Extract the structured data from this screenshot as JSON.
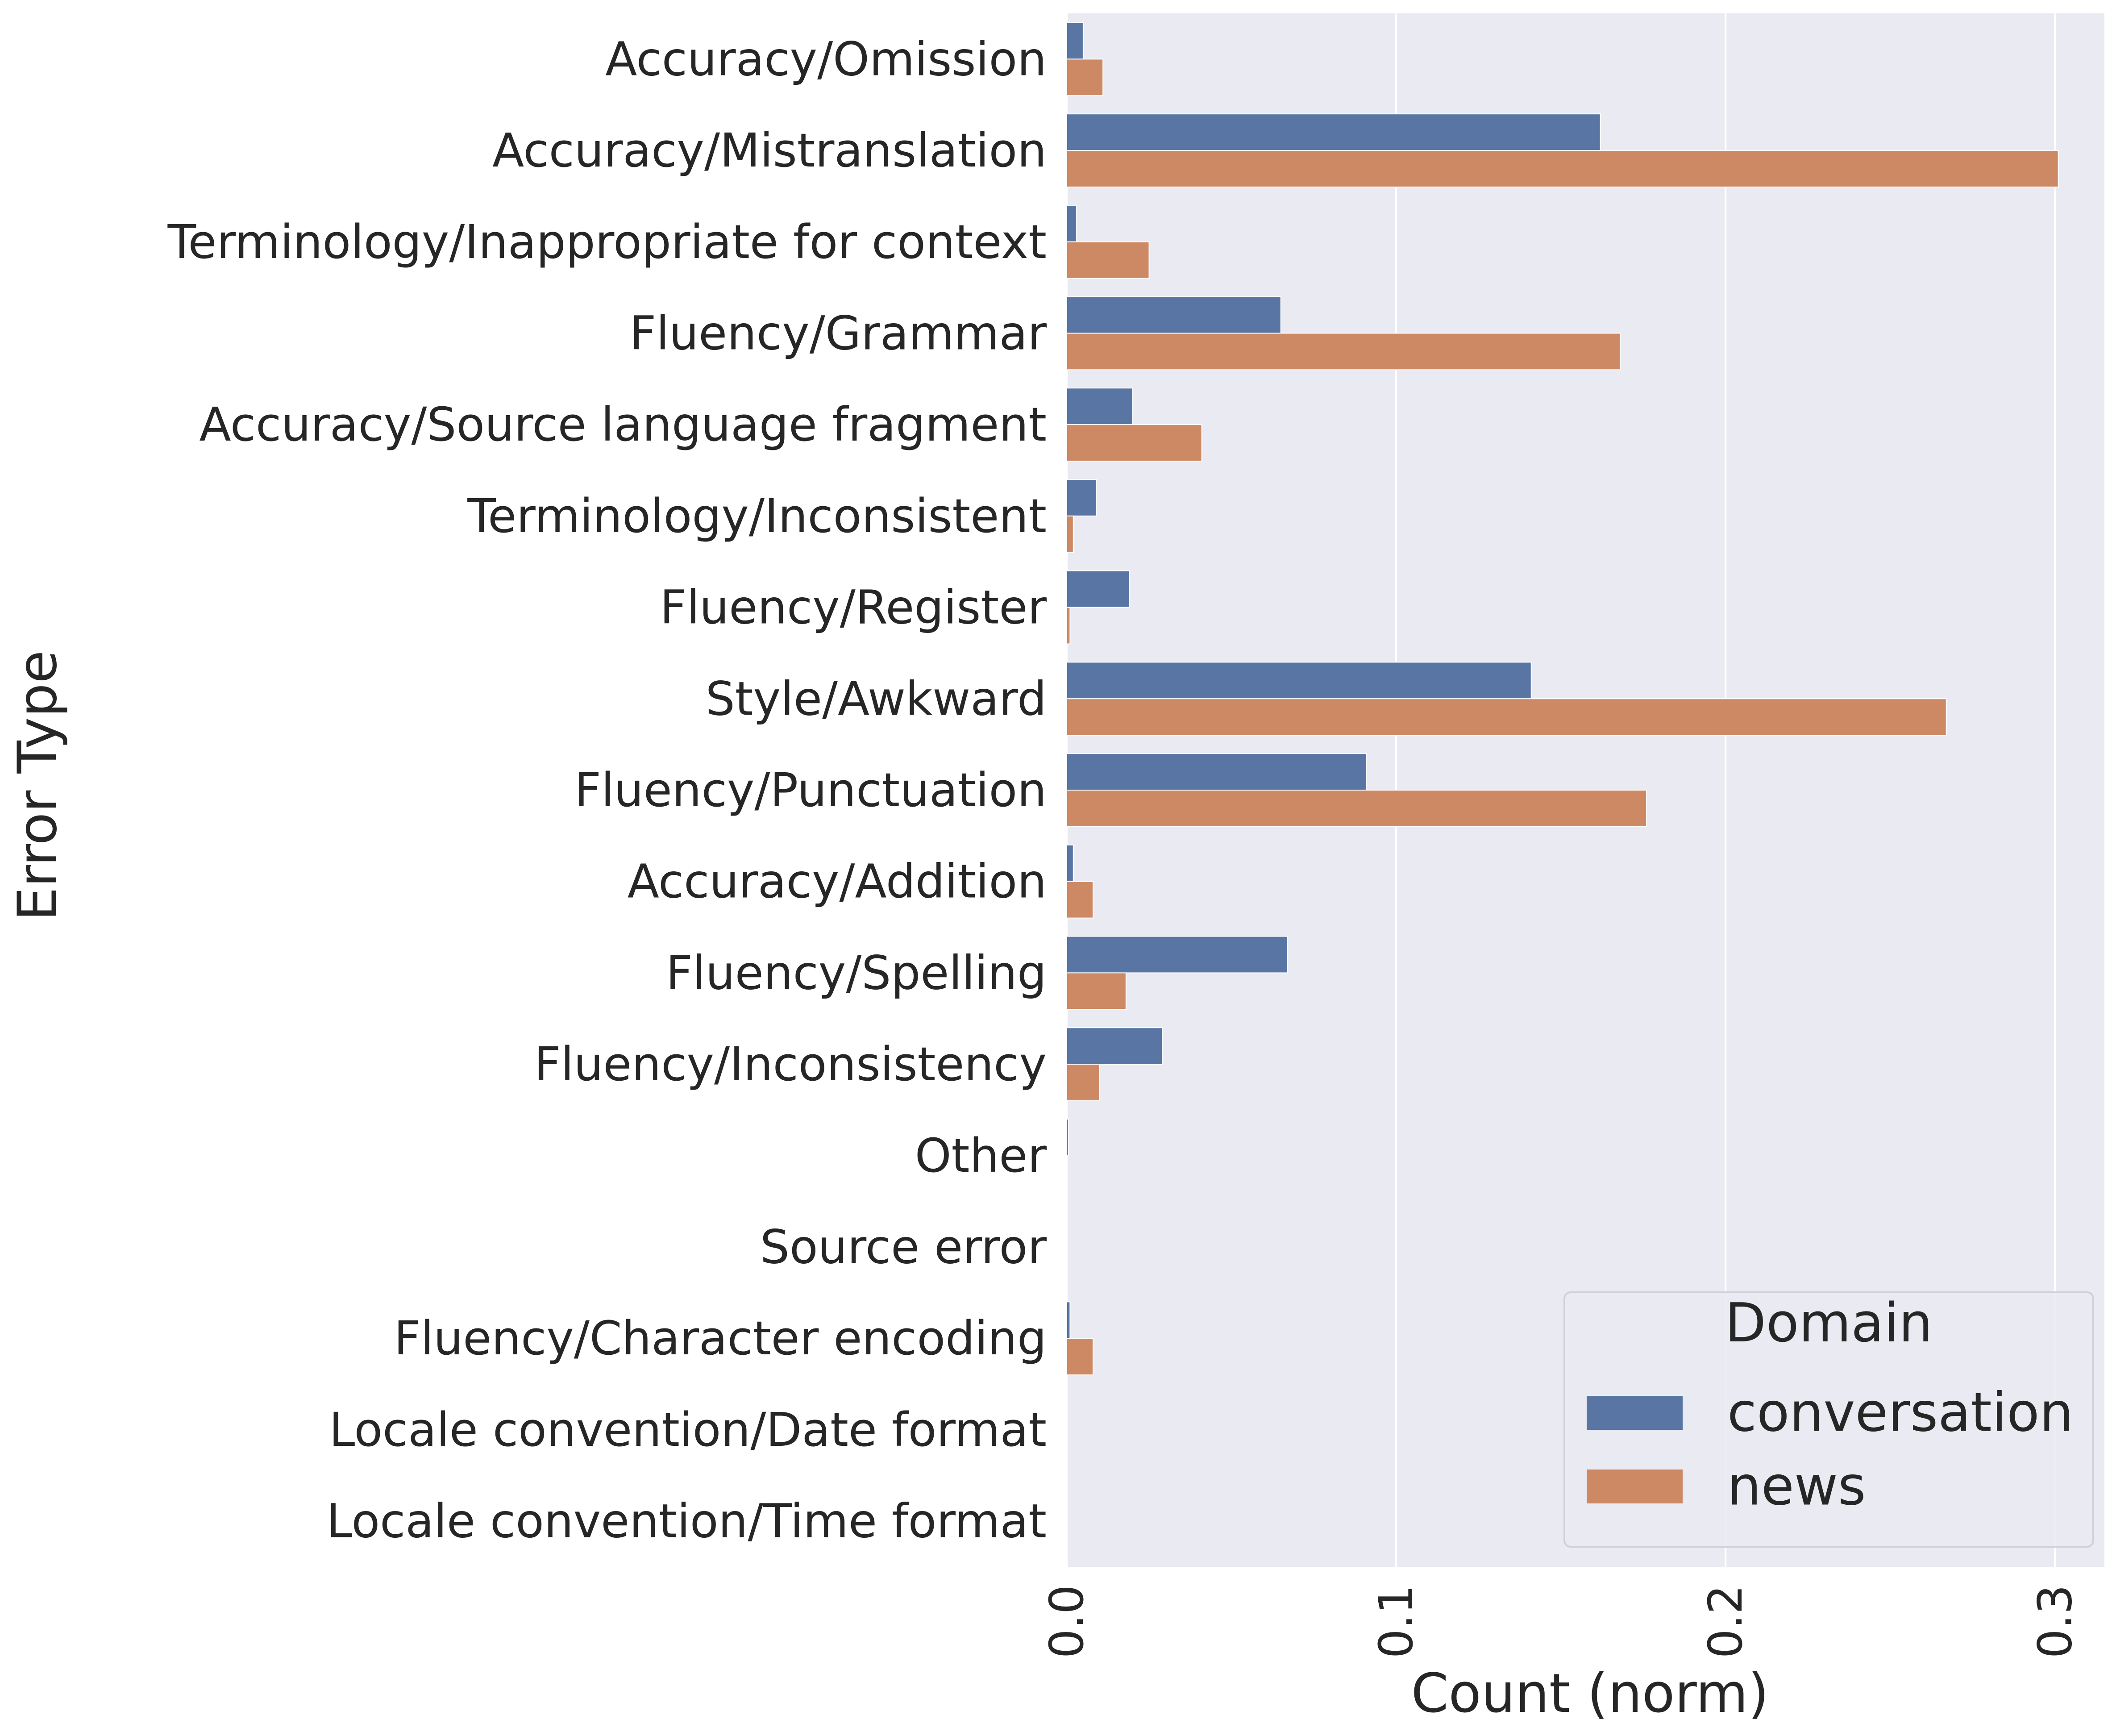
{
  "chart_data": {
    "type": "bar",
    "orientation": "horizontal",
    "xlabel": "Count (norm)",
    "ylabel": "Error Type",
    "xlim": [
      0,
      0.315
    ],
    "xticks": [
      0.0,
      0.1,
      0.2,
      0.3
    ],
    "xtick_labels": [
      "0.0",
      "0.1",
      "0.2",
      "0.3"
    ],
    "grid": true,
    "categories": [
      "Accuracy/Omission",
      "Accuracy/Mistranslation",
      "Terminology/Inappropriate for context",
      "Fluency/Grammar",
      "Accuracy/Source language fragment",
      "Terminology/Inconsistent",
      "Fluency/Register",
      "Style/Awkward",
      "Fluency/Punctuation",
      "Accuracy/Addition",
      "Fluency/Spelling",
      "Fluency/Inconsistency",
      "Other",
      "Source error",
      "Fluency/Character encoding",
      "Locale convention/Date format",
      "Locale convention/Time format"
    ],
    "series": [
      {
        "name": "conversation",
        "color": "#5875a4",
        "values": [
          0.005,
          0.162,
          0.003,
          0.065,
          0.02,
          0.009,
          0.019,
          0.141,
          0.091,
          0.002,
          0.067,
          0.029,
          0.0005,
          0.0,
          0.001,
          0.0,
          0.0
        ]
      },
      {
        "name": "news",
        "color": "#cc8963",
        "values": [
          0.011,
          0.301,
          0.025,
          0.168,
          0.041,
          0.002,
          0.001,
          0.267,
          0.176,
          0.008,
          0.018,
          0.01,
          0.0,
          0.0,
          0.008,
          0.0,
          0.0
        ]
      }
    ],
    "legend": {
      "title": "Domain",
      "placement": "bottom-right",
      "entries": [
        "conversation",
        "news"
      ]
    },
    "colors": {
      "plot_background": "#eaeaf2",
      "grid": "#ffffff",
      "text": "#262626"
    }
  }
}
